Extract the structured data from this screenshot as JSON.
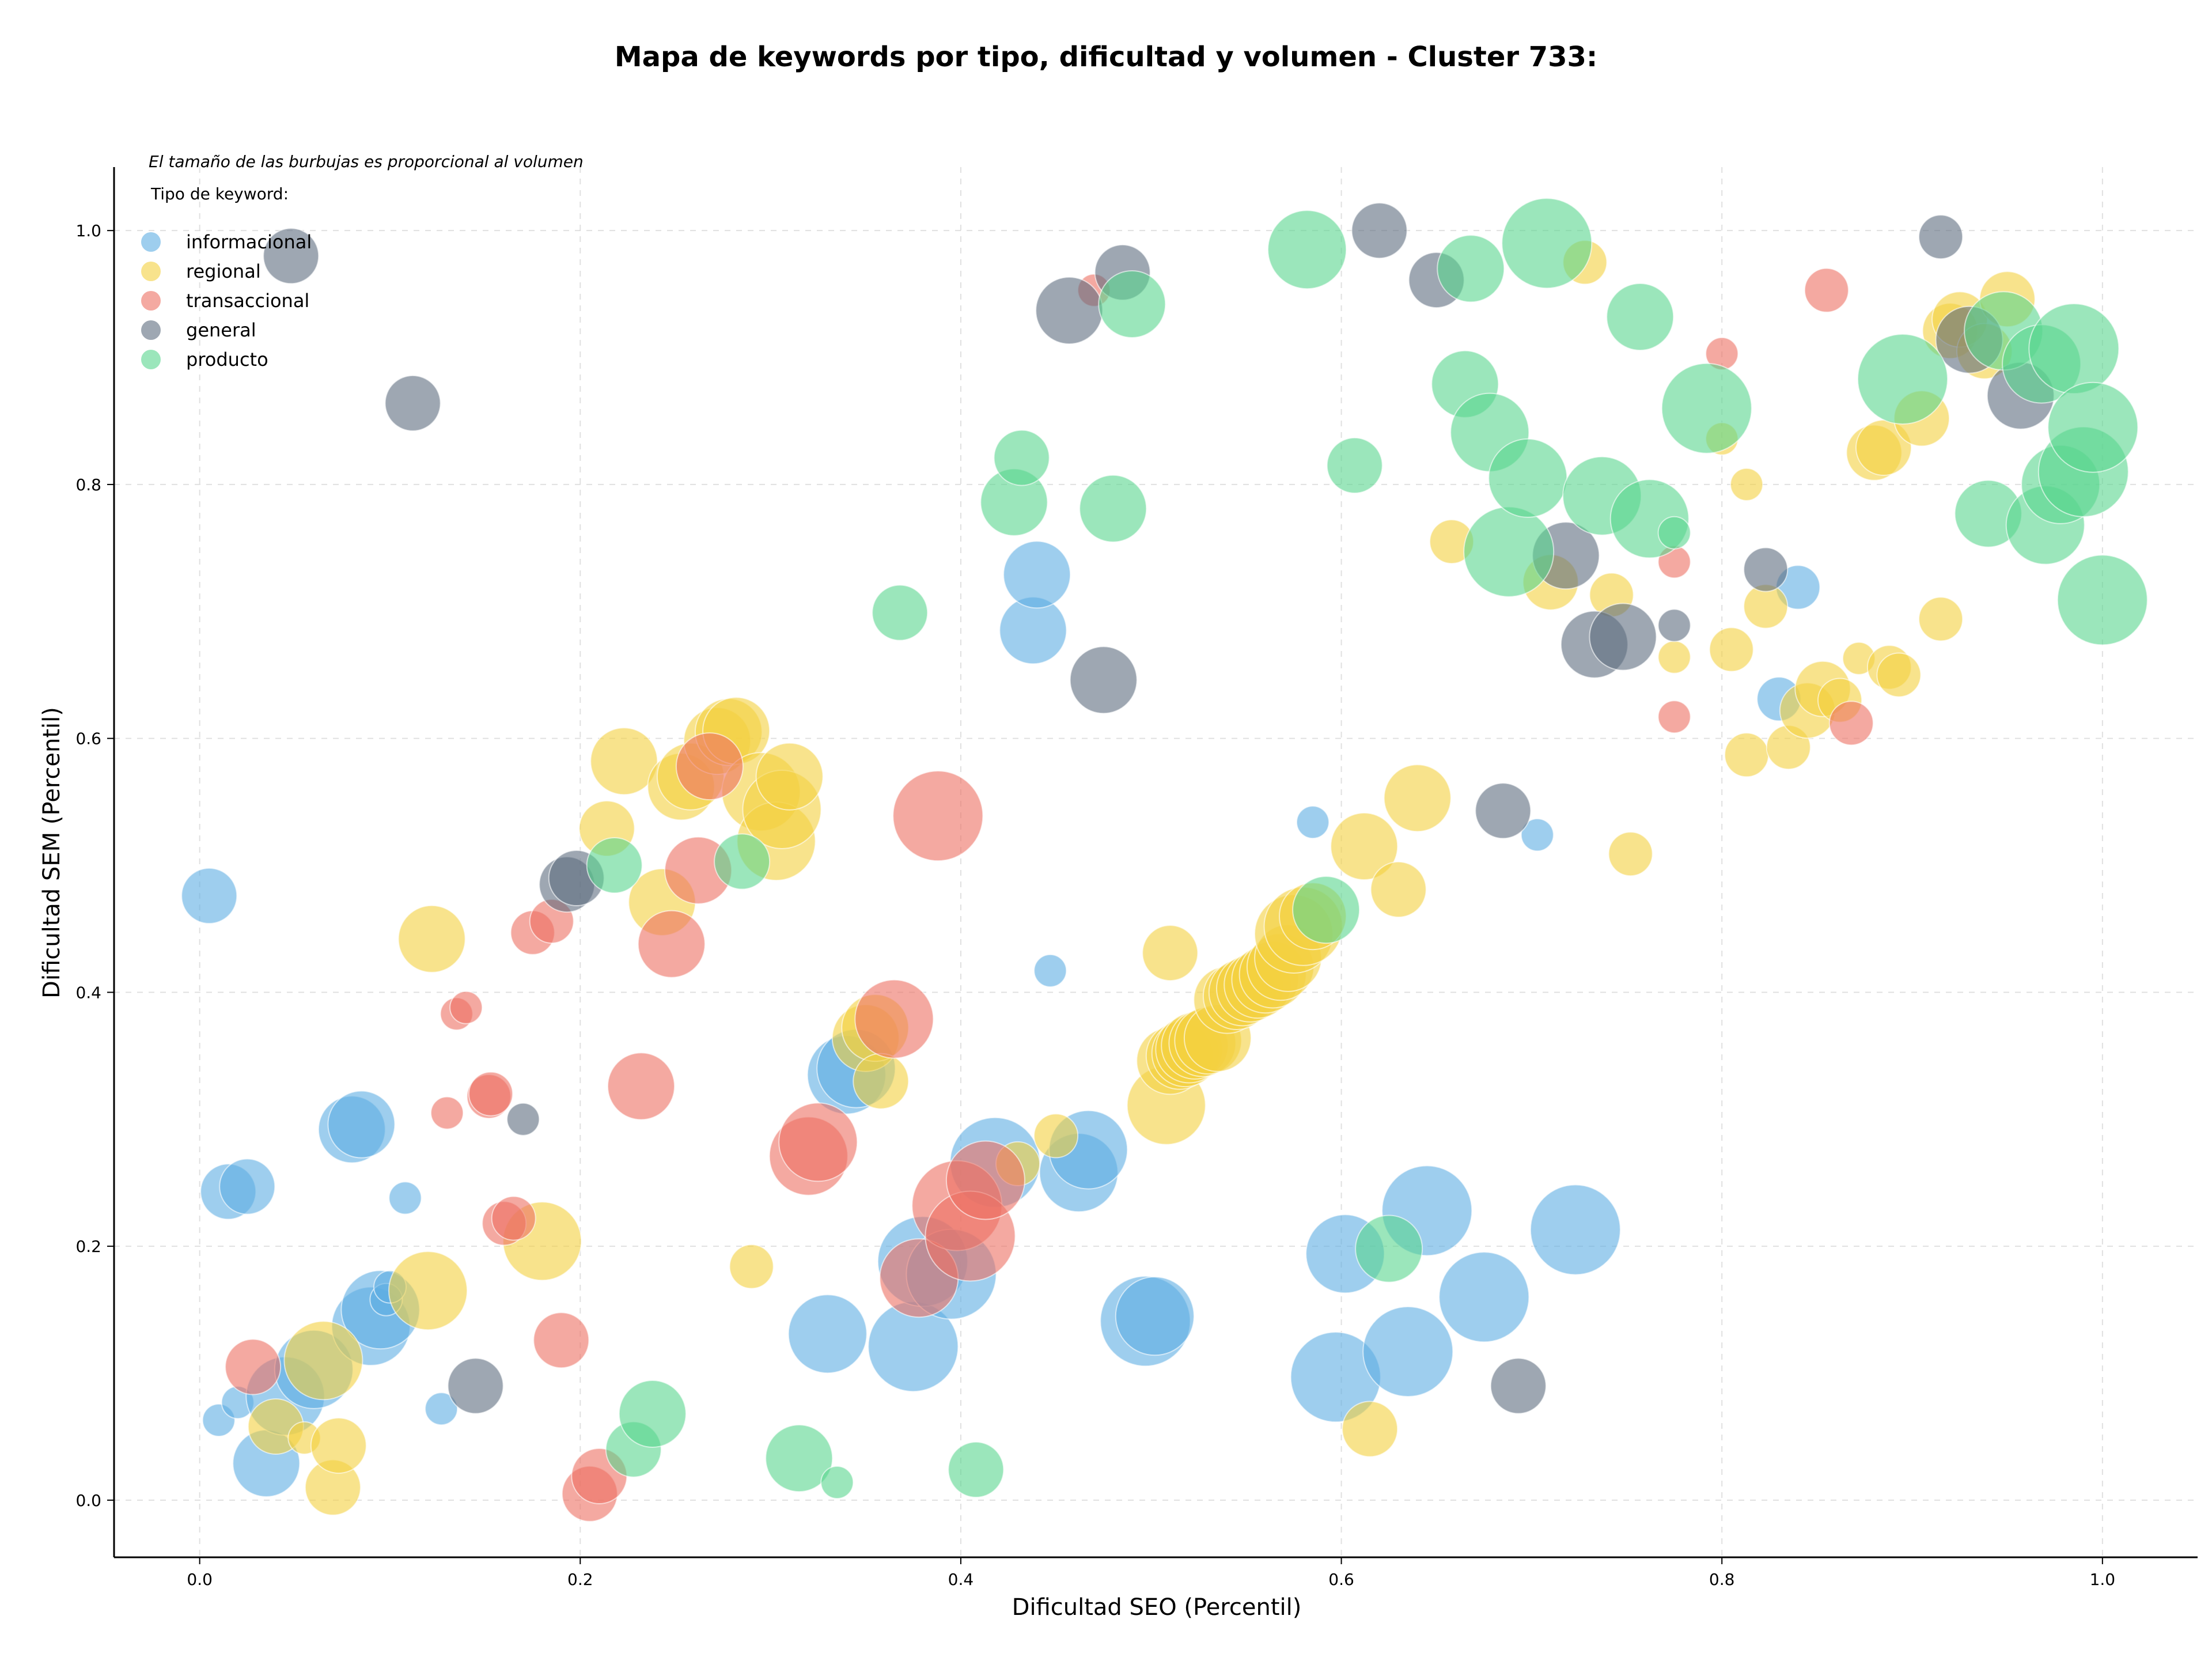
{
  "chart_data": {
    "type": "scatter",
    "title": "Mapa de keywords por tipo, dificultad y volumen - Cluster 733:",
    "xlabel": "Dificultad SEO (Percentil)",
    "ylabel": "Dificultad SEM (Percentil)",
    "xlim": [
      -0.045,
      1.05
    ],
    "ylim": [
      -0.045,
      1.05
    ],
    "xticks": [
      "0.0",
      "0.2",
      "0.4",
      "0.6",
      "0.8",
      "1.0"
    ],
    "yticks": [
      "0.0",
      "0.2",
      "0.4",
      "0.6",
      "0.8",
      "1.0"
    ],
    "grid": true,
    "note": "El tamaño de las burbujas es proporcional al volumen",
    "legend_title": "Tipo de keyword:",
    "legend_position": "top-left",
    "series": [
      {
        "name": "informacional",
        "color": "#5DADE2",
        "points": [
          [
            0.005,
            0.476,
            3
          ],
          [
            0.015,
            0.243,
            3
          ],
          [
            0.025,
            0.247,
            3
          ],
          [
            0.01,
            0.063,
            1
          ],
          [
            0.02,
            0.077,
            1
          ],
          [
            0.035,
            0.029,
            4
          ],
          [
            0.045,
            0.082,
            5
          ],
          [
            0.06,
            0.103,
            5
          ],
          [
            0.08,
            0.292,
            4
          ],
          [
            0.085,
            0.296,
            4
          ],
          [
            0.09,
            0.137,
            5
          ],
          [
            0.095,
            0.15,
            5
          ],
          [
            0.098,
            0.158,
            1
          ],
          [
            0.1,
            0.168,
            1
          ],
          [
            0.108,
            0.238,
            1
          ],
          [
            0.127,
            0.072,
            1
          ],
          [
            0.33,
            0.131,
            5
          ],
          [
            0.34,
            0.335,
            5
          ],
          [
            0.345,
            0.34,
            5
          ],
          [
            0.375,
            0.121,
            6
          ],
          [
            0.38,
            0.188,
            6
          ],
          [
            0.395,
            0.178,
            6
          ],
          [
            0.418,
            0.266,
            6
          ],
          [
            0.438,
            0.685,
            4
          ],
          [
            0.44,
            0.729,
            4
          ],
          [
            0.447,
            0.417,
            1
          ],
          [
            0.462,
            0.258,
            5
          ],
          [
            0.467,
            0.276,
            5
          ],
          [
            0.497,
            0.141,
            6
          ],
          [
            0.502,
            0.145,
            5
          ],
          [
            0.585,
            0.534,
            1
          ],
          [
            0.597,
            0.097,
            6
          ],
          [
            0.602,
            0.194,
            5
          ],
          [
            0.635,
            0.117,
            6
          ],
          [
            0.645,
            0.228,
            6
          ],
          [
            0.675,
            0.16,
            6
          ],
          [
            0.703,
            0.524,
            1
          ],
          [
            0.723,
            0.213,
            6
          ],
          [
            0.83,
            0.631,
            2
          ],
          [
            0.84,
            0.719,
            2
          ]
        ]
      },
      {
        "name": "regional",
        "color": "#F4D03F",
        "points": [
          [
            0.04,
            0.058,
            3
          ],
          [
            0.055,
            0.049,
            1
          ],
          [
            0.065,
            0.11,
            5
          ],
          [
            0.07,
            0.01,
            3
          ],
          [
            0.073,
            0.043,
            3
          ],
          [
            0.12,
            0.165,
            5
          ],
          [
            0.122,
            0.442,
            4
          ],
          [
            0.18,
            0.204,
            5
          ],
          [
            0.214,
            0.529,
            3
          ],
          [
            0.223,
            0.582,
            4
          ],
          [
            0.243,
            0.471,
            4
          ],
          [
            0.253,
            0.562,
            4
          ],
          [
            0.258,
            0.57,
            4
          ],
          [
            0.272,
            0.598,
            4
          ],
          [
            0.278,
            0.605,
            4
          ],
          [
            0.282,
            0.606,
            4
          ],
          [
            0.29,
            0.184,
            2
          ],
          [
            0.295,
            0.558,
            5
          ],
          [
            0.303,
            0.519,
            5
          ],
          [
            0.306,
            0.544,
            5
          ],
          [
            0.31,
            0.57,
            4
          ],
          [
            0.35,
            0.364,
            4
          ],
          [
            0.355,
            0.372,
            4
          ],
          [
            0.358,
            0.33,
            3
          ],
          [
            0.43,
            0.265,
            2
          ],
          [
            0.45,
            0.287,
            2
          ],
          [
            0.508,
            0.311,
            5
          ],
          [
            0.51,
            0.346,
            4
          ],
          [
            0.515,
            0.35,
            4
          ],
          [
            0.518,
            0.352,
            4
          ],
          [
            0.52,
            0.355,
            4
          ],
          [
            0.523,
            0.358,
            4
          ],
          [
            0.527,
            0.36,
            4
          ],
          [
            0.53,
            0.362,
            4
          ],
          [
            0.535,
            0.364,
            4
          ],
          [
            0.54,
            0.394,
            4
          ],
          [
            0.545,
            0.397,
            4
          ],
          [
            0.548,
            0.4,
            4
          ],
          [
            0.552,
            0.403,
            4
          ],
          [
            0.556,
            0.406,
            4
          ],
          [
            0.56,
            0.41,
            4
          ],
          [
            0.564,
            0.414,
            4
          ],
          [
            0.568,
            0.42,
            4
          ],
          [
            0.572,
            0.427,
            4
          ],
          [
            0.575,
            0.446,
            5
          ],
          [
            0.58,
            0.452,
            5
          ],
          [
            0.585,
            0.46,
            4
          ],
          [
            0.51,
            0.431,
            3
          ],
          [
            0.612,
            0.515,
            4
          ],
          [
            0.615,
            0.056,
            3
          ],
          [
            0.63,
            0.481,
            3
          ],
          [
            0.64,
            0.553,
            4
          ],
          [
            0.658,
            0.755,
            2
          ],
          [
            0.71,
            0.723,
            3
          ],
          [
            0.728,
            0.975,
            2
          ],
          [
            0.742,
            0.713,
            2
          ],
          [
            0.752,
            0.509,
            2
          ],
          [
            0.775,
            0.664,
            1
          ],
          [
            0.8,
            0.836,
            1
          ],
          [
            0.805,
            0.67,
            2
          ],
          [
            0.813,
            0.8,
            1
          ],
          [
            0.813,
            0.587,
            2
          ],
          [
            0.823,
            0.704,
            2
          ],
          [
            0.835,
            0.593,
            2
          ],
          [
            0.845,
            0.622,
            3
          ],
          [
            0.853,
            0.639,
            3
          ],
          [
            0.862,
            0.63,
            2
          ],
          [
            0.872,
            0.663,
            1
          ],
          [
            0.88,
            0.825,
            3
          ],
          [
            0.885,
            0.829,
            3
          ],
          [
            0.888,
            0.656,
            2
          ],
          [
            0.893,
            0.65,
            2
          ],
          [
            0.905,
            0.852,
            3
          ],
          [
            0.915,
            0.694,
            2
          ],
          [
            0.92,
            0.921,
            3
          ],
          [
            0.925,
            0.93,
            3
          ],
          [
            0.938,
            0.905,
            3
          ],
          [
            0.95,
            0.946,
            3
          ]
        ]
      },
      {
        "name": "transaccional",
        "color": "#EC7063",
        "points": [
          [
            0.028,
            0.105,
            3
          ],
          [
            0.13,
            0.305,
            1
          ],
          [
            0.135,
            0.383,
            1
          ],
          [
            0.14,
            0.388,
            1
          ],
          [
            0.152,
            0.318,
            2
          ],
          [
            0.153,
            0.32,
            2
          ],
          [
            0.16,
            0.218,
            2
          ],
          [
            0.165,
            0.222,
            2
          ],
          [
            0.175,
            0.447,
            2
          ],
          [
            0.185,
            0.456,
            2
          ],
          [
            0.19,
            0.126,
            3
          ],
          [
            0.205,
            0.005,
            3
          ],
          [
            0.21,
            0.019,
            3
          ],
          [
            0.232,
            0.326,
            4
          ],
          [
            0.248,
            0.438,
            4
          ],
          [
            0.262,
            0.496,
            4
          ],
          [
            0.268,
            0.578,
            4
          ],
          [
            0.32,
            0.271,
            5
          ],
          [
            0.325,
            0.282,
            5
          ],
          [
            0.365,
            0.379,
            5
          ],
          [
            0.378,
            0.175,
            5
          ],
          [
            0.388,
            0.539,
            6
          ],
          [
            0.398,
            0.232,
            6
          ],
          [
            0.405,
            0.208,
            6
          ],
          [
            0.413,
            0.252,
            5
          ],
          [
            0.47,
            0.953,
            1
          ],
          [
            0.775,
            0.739,
            1
          ],
          [
            0.775,
            0.617,
            1
          ],
          [
            0.8,
            0.903,
            1
          ],
          [
            0.855,
            0.953,
            2
          ],
          [
            0.868,
            0.612,
            2
          ]
        ]
      },
      {
        "name": "general",
        "color": "#5D6D7E",
        "points": [
          [
            0.048,
            0.98,
            3
          ],
          [
            0.112,
            0.864,
            3
          ],
          [
            0.145,
            0.09,
            3
          ],
          [
            0.17,
            0.3,
            1
          ],
          [
            0.193,
            0.485,
            3
          ],
          [
            0.198,
            0.49,
            3
          ],
          [
            0.457,
            0.937,
            4
          ],
          [
            0.475,
            0.646,
            4
          ],
          [
            0.485,
            0.967,
            3
          ],
          [
            0.62,
            1.0,
            3
          ],
          [
            0.65,
            0.961,
            3
          ],
          [
            0.685,
            0.543,
            3
          ],
          [
            0.693,
            0.09,
            3
          ],
          [
            0.718,
            0.744,
            4
          ],
          [
            0.733,
            0.674,
            4
          ],
          [
            0.748,
            0.68,
            4
          ],
          [
            0.775,
            0.689,
            1
          ],
          [
            0.823,
            0.733,
            2
          ],
          [
            0.915,
            0.995,
            2
          ],
          [
            0.93,
            0.914,
            4
          ],
          [
            0.957,
            0.87,
            4
          ]
        ]
      },
      {
        "name": "producto",
        "color": "#58D68D",
        "points": [
          [
            0.218,
            0.5,
            3
          ],
          [
            0.228,
            0.04,
            3
          ],
          [
            0.238,
            0.068,
            4
          ],
          [
            0.285,
            0.503,
            3
          ],
          [
            0.315,
            0.033,
            4
          ],
          [
            0.335,
            0.014,
            1
          ],
          [
            0.368,
            0.699,
            3
          ],
          [
            0.408,
            0.024,
            3
          ],
          [
            0.428,
            0.786,
            4
          ],
          [
            0.432,
            0.821,
            3
          ],
          [
            0.48,
            0.781,
            4
          ],
          [
            0.49,
            0.942,
            4
          ],
          [
            0.582,
            0.985,
            5
          ],
          [
            0.592,
            0.465,
            4
          ],
          [
            0.607,
            0.815,
            3
          ],
          [
            0.625,
            0.198,
            4
          ],
          [
            0.665,
            0.879,
            4
          ],
          [
            0.668,
            0.97,
            4
          ],
          [
            0.678,
            0.841,
            5
          ],
          [
            0.688,
            0.747,
            6
          ],
          [
            0.698,
            0.805,
            5
          ],
          [
            0.708,
            0.99,
            6
          ],
          [
            0.737,
            0.791,
            5
          ],
          [
            0.757,
            0.932,
            4
          ],
          [
            0.762,
            0.773,
            5
          ],
          [
            0.775,
            0.762,
            1
          ],
          [
            0.792,
            0.86,
            6
          ],
          [
            0.895,
            0.883,
            6
          ],
          [
            0.94,
            0.777,
            4
          ],
          [
            0.948,
            0.921,
            5
          ],
          [
            0.968,
            0.895,
            5
          ],
          [
            0.97,
            0.768,
            5
          ],
          [
            0.978,
            0.8,
            5
          ],
          [
            0.985,
            0.907,
            6
          ],
          [
            0.99,
            0.81,
            6
          ],
          [
            0.995,
            0.845,
            6
          ],
          [
            1.0,
            0.709,
            6
          ]
        ]
      }
    ]
  }
}
